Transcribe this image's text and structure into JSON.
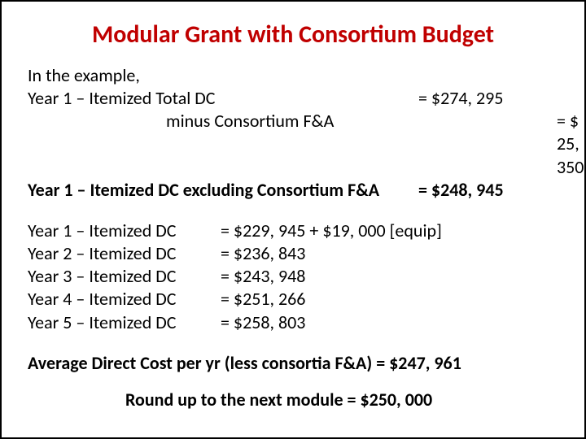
{
  "title": "Modular Grant with Consortium Budget",
  "colors": {
    "title_color": "#c00000",
    "text_color": "#000000",
    "background": "#ffffff",
    "border": "#000000"
  },
  "typography": {
    "title_fontsize": 30,
    "body_fontsize": 22,
    "title_weight": 700
  },
  "intro": "In the example,",
  "summary": {
    "rows": [
      {
        "label": "Year 1 – Itemized Total DC",
        "value": "= $274, 295",
        "bold": false,
        "indent": false
      },
      {
        "label": "minus Consortium F&A",
        "value": "= $  25, 350",
        "bold": false,
        "indent": true
      },
      {
        "label": "Year 1 – Itemized DC excluding Consortium F&A",
        "value": "= $248, 945",
        "bold": true,
        "indent": false
      }
    ]
  },
  "years": [
    {
      "label": "Year 1 – Itemized DC",
      "value": "= $229, 945 + $19, 000 [equip]"
    },
    {
      "label": "Year 2 – Itemized DC",
      "value": "= $236, 843"
    },
    {
      "label": "Year 3 – Itemized DC",
      "value": "= $243, 948"
    },
    {
      "label": "Year 4 – Itemized DC",
      "value": "= $251, 266"
    },
    {
      "label": "Year 5 – Itemized DC",
      "value": "= $258, 803"
    }
  ],
  "average_line": "Average Direct Cost per yr (less consortia F&A) = $247, 961",
  "round_line": "Round up to the next module = $250, 000"
}
